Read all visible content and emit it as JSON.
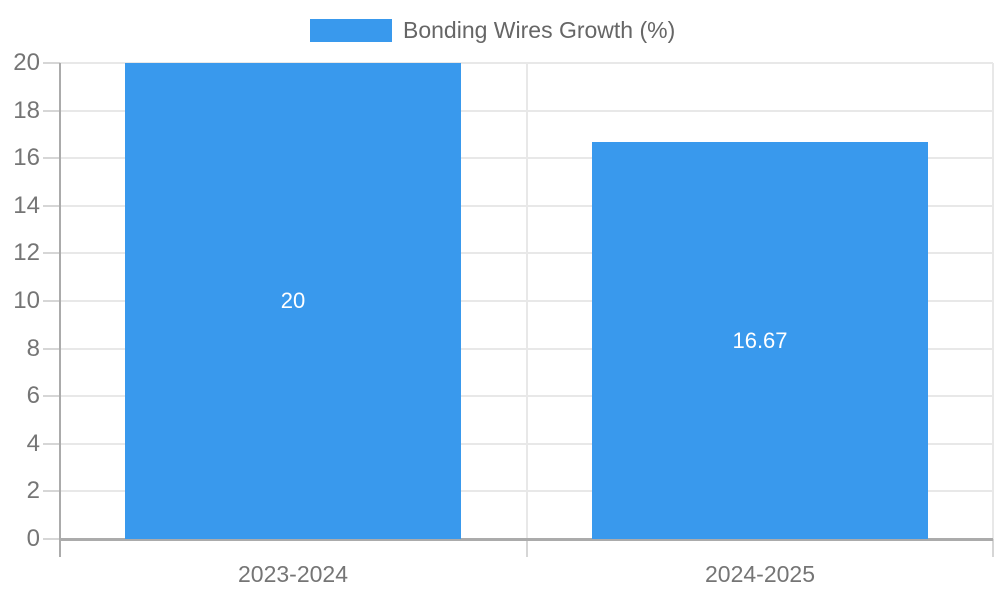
{
  "chart_data": {
    "type": "bar",
    "title": "",
    "legend": {
      "label": "Bonding Wires Growth (%)",
      "position": "top-center"
    },
    "categories": [
      "2023-2024",
      "2024-2025"
    ],
    "values": [
      20,
      16.67
    ],
    "value_labels": [
      "20",
      "16.67"
    ],
    "xlabel": "",
    "ylabel": "",
    "ylim": [
      0,
      20
    ],
    "ytick_step": 2,
    "yticks": [
      0,
      2,
      4,
      6,
      8,
      10,
      12,
      14,
      16,
      18,
      20
    ],
    "grid": true,
    "colors": {
      "bar": "#3999ed",
      "value_label": "#ffffff",
      "axis": "#ababab",
      "tick_mark": "#d6d6d6",
      "grid": "#e8e8e8",
      "tick_label": "#757575",
      "legend_text": "#666666",
      "background": "#ffffff"
    }
  }
}
